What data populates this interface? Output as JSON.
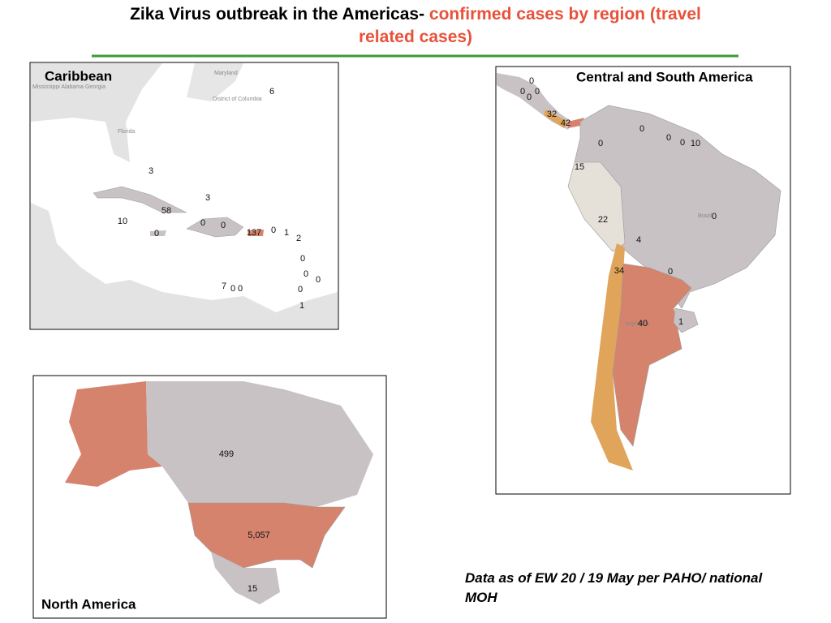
{
  "title": {
    "lead": "Zika Virus outbreak in the Americas-",
    "highlight": "confirmed cases by region (travel related cases)"
  },
  "panels": [
    {
      "label": "Caribbean",
      "place_labels": [
        "Maryland",
        "District of Columbia",
        "Florida",
        "Mississippi Alabama Georgia"
      ],
      "case_labels": [
        "6",
        "3",
        "3",
        "58",
        "10",
        "0",
        "0",
        "0",
        "137",
        "0",
        "1",
        "2",
        "0",
        "0",
        "0",
        "0",
        "7",
        "0",
        "0",
        "1"
      ]
    },
    {
      "label": "Central and South America",
      "place_labels": [
        "Brazil",
        "Argentina"
      ],
      "case_labels": [
        "0",
        "0",
        "0",
        "0",
        "32",
        "42",
        "0",
        "0",
        "0",
        "0",
        "10",
        "15",
        "22",
        "0",
        "4",
        "34",
        "0",
        "40",
        "1"
      ]
    },
    {
      "label": "North America",
      "place_labels": [],
      "case_labels": [
        "499",
        "5,057",
        "15"
      ]
    }
  ],
  "footnote": "Data as of EW 20 / 19 May per PAHO/ national MOH"
}
